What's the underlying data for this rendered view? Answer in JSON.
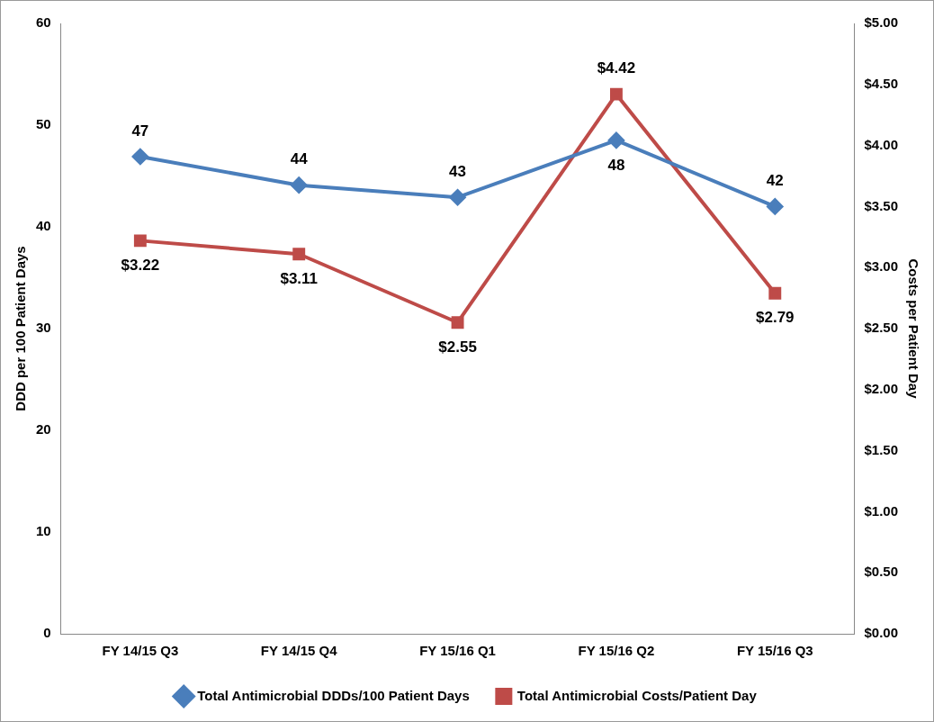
{
  "chart_data": {
    "type": "line",
    "categories": [
      "FY 14/15 Q3",
      "FY 14/15 Q4",
      "FY 15/16 Q1",
      "FY 15/16 Q2",
      "FY 15/16 Q3"
    ],
    "series": [
      {
        "name": "Total Antimicrobial DDDs/100 Patient Days",
        "color": "#4a7ebb",
        "marker": "diamond",
        "values": [
          46.9,
          44.1,
          42.9,
          48.5,
          42.0
        ],
        "value_labels": [
          "47",
          "44",
          "43",
          "48",
          "42"
        ]
      },
      {
        "name": "Total Antimicrobial Costs/Patient Day",
        "color": "#be4b48",
        "marker": "square",
        "axis": "y2",
        "values": [
          3.22,
          3.11,
          2.55,
          4.42,
          2.79
        ],
        "value_labels": [
          "$3.22",
          "$3.11",
          "$2.55",
          "$4.42",
          "$2.79"
        ]
      }
    ],
    "ylabel": "DDD per 100 Patient Days",
    "y2label": "Costs per Patient Day",
    "ylim": [
      0,
      60
    ],
    "yticks": [
      0,
      10,
      20,
      30,
      40,
      50,
      60
    ],
    "y2lim": [
      0,
      5
    ],
    "y2ticks": [
      {
        "value": 0,
        "label": "$0.00"
      },
      {
        "value": 0.5,
        "label": "$0.50"
      },
      {
        "value": 1,
        "label": "$1.00"
      },
      {
        "value": 1.5,
        "label": "$1.50"
      },
      {
        "value": 2,
        "label": "$2.00"
      },
      {
        "value": 2.5,
        "label": "$2.50"
      },
      {
        "value": 3,
        "label": "$3.00"
      },
      {
        "value": 3.5,
        "label": "$3.50"
      },
      {
        "value": 4,
        "label": "$4.00"
      },
      {
        "value": 4.5,
        "label": "$4.50"
      },
      {
        "value": 5,
        "label": "$5.00"
      }
    ],
    "grid": false,
    "legend": "bottom",
    "line_style": "solid"
  }
}
